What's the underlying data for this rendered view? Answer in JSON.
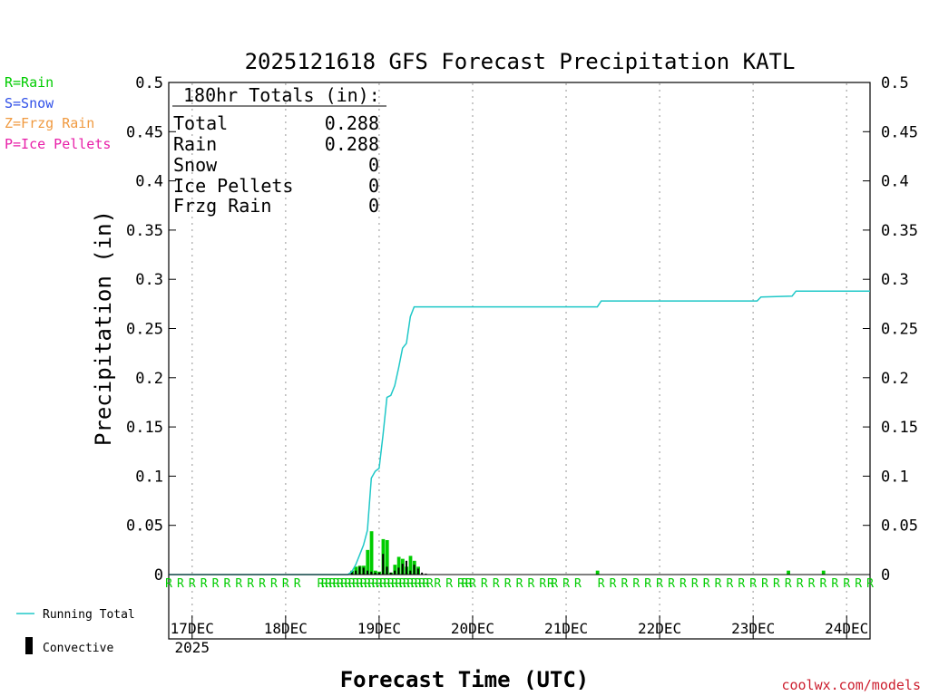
{
  "chart_data": {
    "type": "line",
    "title": "2025121618 GFS Forecast Precipitation KATL",
    "xlabel": "Forecast Time (UTC)",
    "ylabel": "Precipitation (in)",
    "xlim": [
      0,
      180
    ],
    "ylim": [
      0,
      0.5
    ],
    "x_unit": "forecast hour",
    "yticks": [
      0,
      0.05,
      0.1,
      0.15,
      0.2,
      0.25,
      0.3,
      0.35,
      0.4,
      0.45,
      0.5
    ],
    "ytick_labels": [
      "0",
      "0.05",
      "0.1",
      "0.15",
      "0.2",
      "0.25",
      "0.3",
      "0.35",
      "0.4",
      "0.45",
      "0.5"
    ],
    "xticks": [
      {
        "hour": 6,
        "label": "17DEC",
        "sub": "2025"
      },
      {
        "hour": 30,
        "label": "18DEC",
        "sub": ""
      },
      {
        "hour": 54,
        "label": "19DEC",
        "sub": ""
      },
      {
        "hour": 78,
        "label": "20DEC",
        "sub": ""
      },
      {
        "hour": 102,
        "label": "21DEC",
        "sub": ""
      },
      {
        "hour": 126,
        "label": "22DEC",
        "sub": ""
      },
      {
        "hour": 150,
        "label": "23DEC",
        "sub": ""
      },
      {
        "hour": 174,
        "label": "24DEC",
        "sub": ""
      }
    ],
    "series": [
      {
        "name": "Running Total",
        "color": "#20c8c8",
        "x": [
          0,
          46,
          47,
          48,
          49,
          50,
          51,
          52,
          53,
          54,
          55,
          56,
          57,
          58,
          59,
          60,
          61,
          62,
          63,
          64,
          110,
          111,
          151,
          152,
          160,
          161,
          180
        ],
        "values": [
          0,
          0,
          0.003,
          0.01,
          0.02,
          0.03,
          0.045,
          0.098,
          0.105,
          0.108,
          0.142,
          0.18,
          0.182,
          0.192,
          0.21,
          0.23,
          0.235,
          0.262,
          0.272,
          0.272,
          0.272,
          0.278,
          0.278,
          0.282,
          0.283,
          0.288,
          0.288
        ]
      }
    ],
    "bars": {
      "name": "Precipitation",
      "color": "#00cc00",
      "hours": [
        47,
        48,
        49,
        50,
        51,
        52,
        53,
        54,
        55,
        56,
        57,
        58,
        59,
        60,
        61,
        62,
        63,
        64,
        110,
        159,
        168
      ],
      "values": [
        0.004,
        0.008,
        0.009,
        0.009,
        0.025,
        0.044,
        0.004,
        0.003,
        0.036,
        0.035,
        0.002,
        0.01,
        0.018,
        0.016,
        0.008,
        0.019,
        0.014,
        0.008,
        0.004,
        0.004,
        0.004
      ]
    },
    "convective": {
      "name": "Convective",
      "color": "#000000",
      "hours": [
        47,
        48,
        49,
        50,
        51,
        52,
        53,
        54,
        55,
        56,
        57,
        58,
        59,
        60,
        61,
        62,
        63,
        64,
        65,
        66
      ],
      "values": [
        0.003,
        0.004,
        0.008,
        0.007,
        0.004,
        0.003,
        0.002,
        0.002,
        0.021,
        0.008,
        0.002,
        0.004,
        0.007,
        0.011,
        0.014,
        0.004,
        0.01,
        0.006,
        0.002,
        0.001
      ]
    },
    "ptype_hours": [
      0,
      3,
      6,
      9,
      12,
      15,
      18,
      21,
      24,
      27,
      30,
      33,
      39,
      40,
      41,
      42,
      43,
      44,
      45,
      46,
      47,
      48,
      49,
      50,
      51,
      52,
      53,
      54,
      55,
      56,
      57,
      58,
      59,
      60,
      61,
      62,
      63,
      64,
      65,
      66,
      67,
      69,
      72,
      75,
      76,
      77,
      78,
      81,
      84,
      87,
      90,
      93,
      96,
      98,
      99,
      102,
      105,
      111,
      114,
      117,
      120,
      123,
      126,
      129,
      132,
      135,
      138,
      141,
      144,
      147,
      150,
      153,
      156,
      159,
      162,
      165,
      168,
      171,
      174,
      177,
      180
    ],
    "ptype_letter": "R",
    "ptype_color": "#00cc00",
    "legend_ptypes": [
      {
        "label": "R=Rain",
        "color": "#00cc00"
      },
      {
        "label": "S=Snow",
        "color": "#3050e8"
      },
      {
        "label": "Z=Frzg Rain",
        "color": "#f09a40"
      },
      {
        "label": "P=Ice Pellets",
        "color": "#e81fa8"
      }
    ],
    "legend_lines": [
      {
        "label": "Running Total",
        "color": "#20c8c8"
      },
      {
        "label": "Convective",
        "color": "#000000"
      }
    ],
    "totals": {
      "heading": "180hr Totals (in):",
      "rows": [
        {
          "label": "Total",
          "value": "0.288"
        },
        {
          "label": "Rain",
          "value": "0.288"
        },
        {
          "label": "Snow",
          "value": "0"
        },
        {
          "label": "Ice Pellets",
          "value": "0"
        },
        {
          "label": "Frzg Rain",
          "value": "0"
        }
      ]
    },
    "credit": "coolwx.com/models",
    "credit_color": "#cc1e2e"
  }
}
